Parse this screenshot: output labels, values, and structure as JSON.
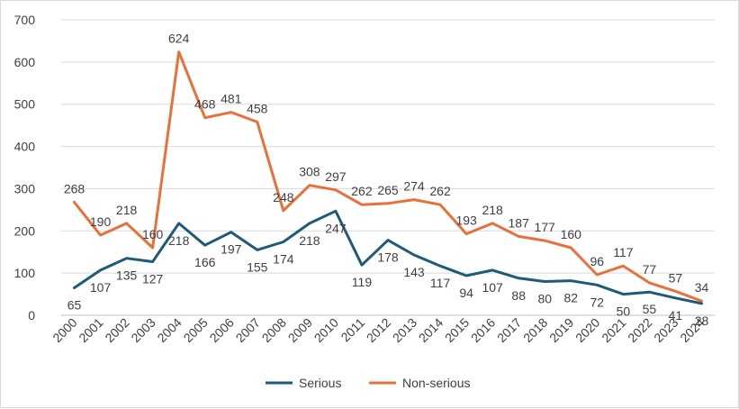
{
  "chart_data": {
    "type": "line",
    "title": "",
    "xlabel": "",
    "ylabel": "",
    "ylim": [
      0,
      700
    ],
    "yticks": [
      0,
      100,
      200,
      300,
      400,
      500,
      600,
      700
    ],
    "grid": true,
    "legend_position": "bottom",
    "categories": [
      "2000",
      "2001",
      "2002",
      "2003",
      "2004",
      "2005",
      "2006",
      "2007",
      "2008",
      "2009",
      "2010",
      "2011",
      "2012",
      "2013",
      "2014",
      "2015",
      "2016",
      "2017",
      "2018",
      "2019",
      "2020",
      "2021",
      "2022",
      "2023",
      "2024"
    ],
    "series": [
      {
        "name": "Serious",
        "color": "#1d5b79",
        "values": [
          65,
          107,
          135,
          127,
          218,
          166,
          197,
          155,
          174,
          218,
          247,
          119,
          178,
          143,
          117,
          94,
          107,
          88,
          80,
          82,
          72,
          50,
          55,
          41,
          28
        ]
      },
      {
        "name": "Non-serious",
        "color": "#e8703a",
        "values": [
          268,
          190,
          218,
          160,
          624,
          468,
          481,
          458,
          248,
          308,
          297,
          262,
          265,
          274,
          262,
          193,
          218,
          187,
          177,
          160,
          96,
          117,
          77,
          57,
          34
        ]
      }
    ]
  }
}
